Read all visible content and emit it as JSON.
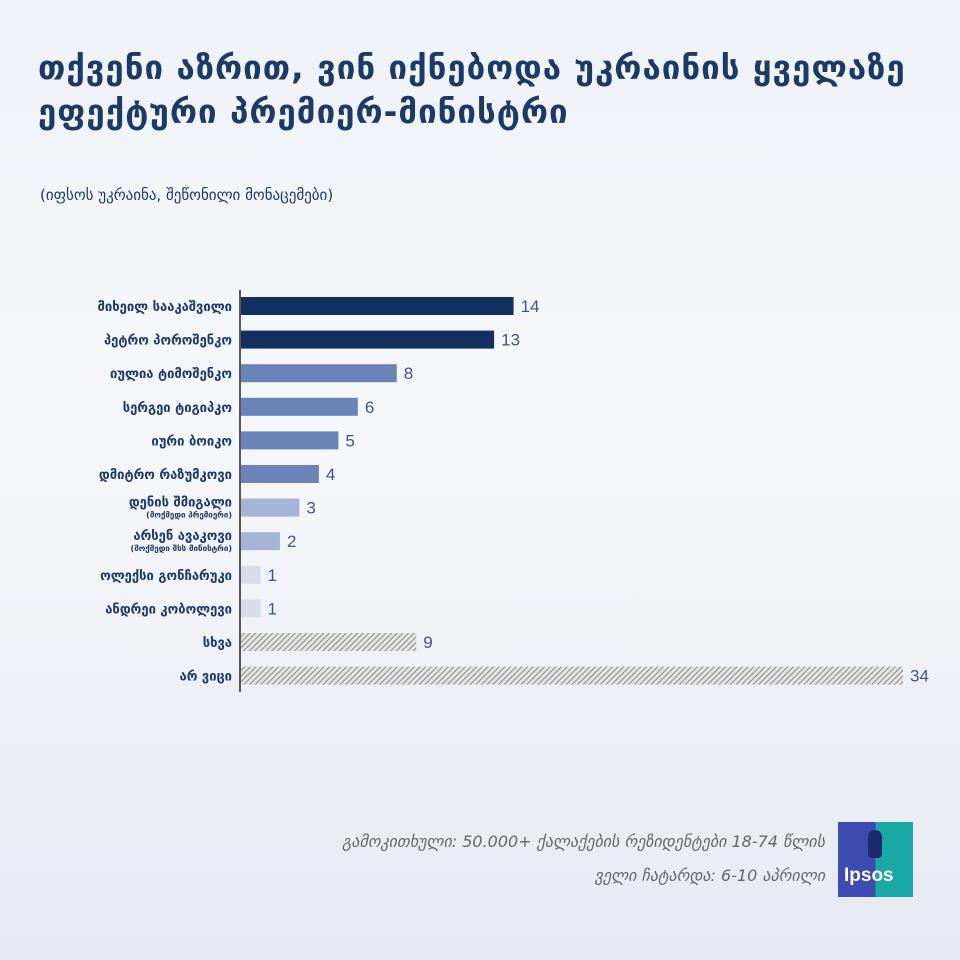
{
  "title": "თქვენი აზრით, ვინ იქნებოდა უკრაინის ყველაზე ეფექტური პრემიერ-მინისტრი",
  "subtitle": "(იფსოს უკრაინა, შეწონილი მონაცემები)",
  "chart_data": {
    "type": "bar",
    "orientation": "horizontal",
    "categories": [
      "მიხეილ სააკაშვილი",
      "პეტრო პოროშენკო",
      "იულია ტიმოშენკო",
      "სერგეი ტიგიპკო",
      "იური ბოიკო",
      "დმიტრო რაზუმკოვი",
      "დენის შმიგალი",
      "არსენ ავაკოვი",
      "ოლექსი გონჩარუკი",
      "ანდრეი კობოლევი",
      "სხვა",
      "არ ვიცი"
    ],
    "sublabels": [
      "",
      "",
      "",
      "",
      "",
      "",
      "(მოქმედი პრემიერი)",
      "(მოქმედი შსს მინისტრი)",
      "",
      "",
      "",
      ""
    ],
    "values": [
      14,
      13,
      8,
      6,
      5,
      4,
      3,
      2,
      1,
      1,
      9,
      34
    ],
    "colors": [
      "#14305e",
      "#14305e",
      "#6b84b8",
      "#6b84b8",
      "#6b84b8",
      "#6b84b8",
      "#a3b4d6",
      "#a3b4d6",
      "#d7dde9",
      "#d7dde9",
      "hatch",
      "hatch"
    ],
    "xlim": [
      0,
      34
    ],
    "grid": false
  },
  "footer": {
    "line1": "გამოკითხული: 50.000+ ქალაქების რეზიდენტები 18-74 წლის",
    "line2": "ველი ჩატარდა: 6-10 აპრილი",
    "logo_text": "Ipsos"
  }
}
